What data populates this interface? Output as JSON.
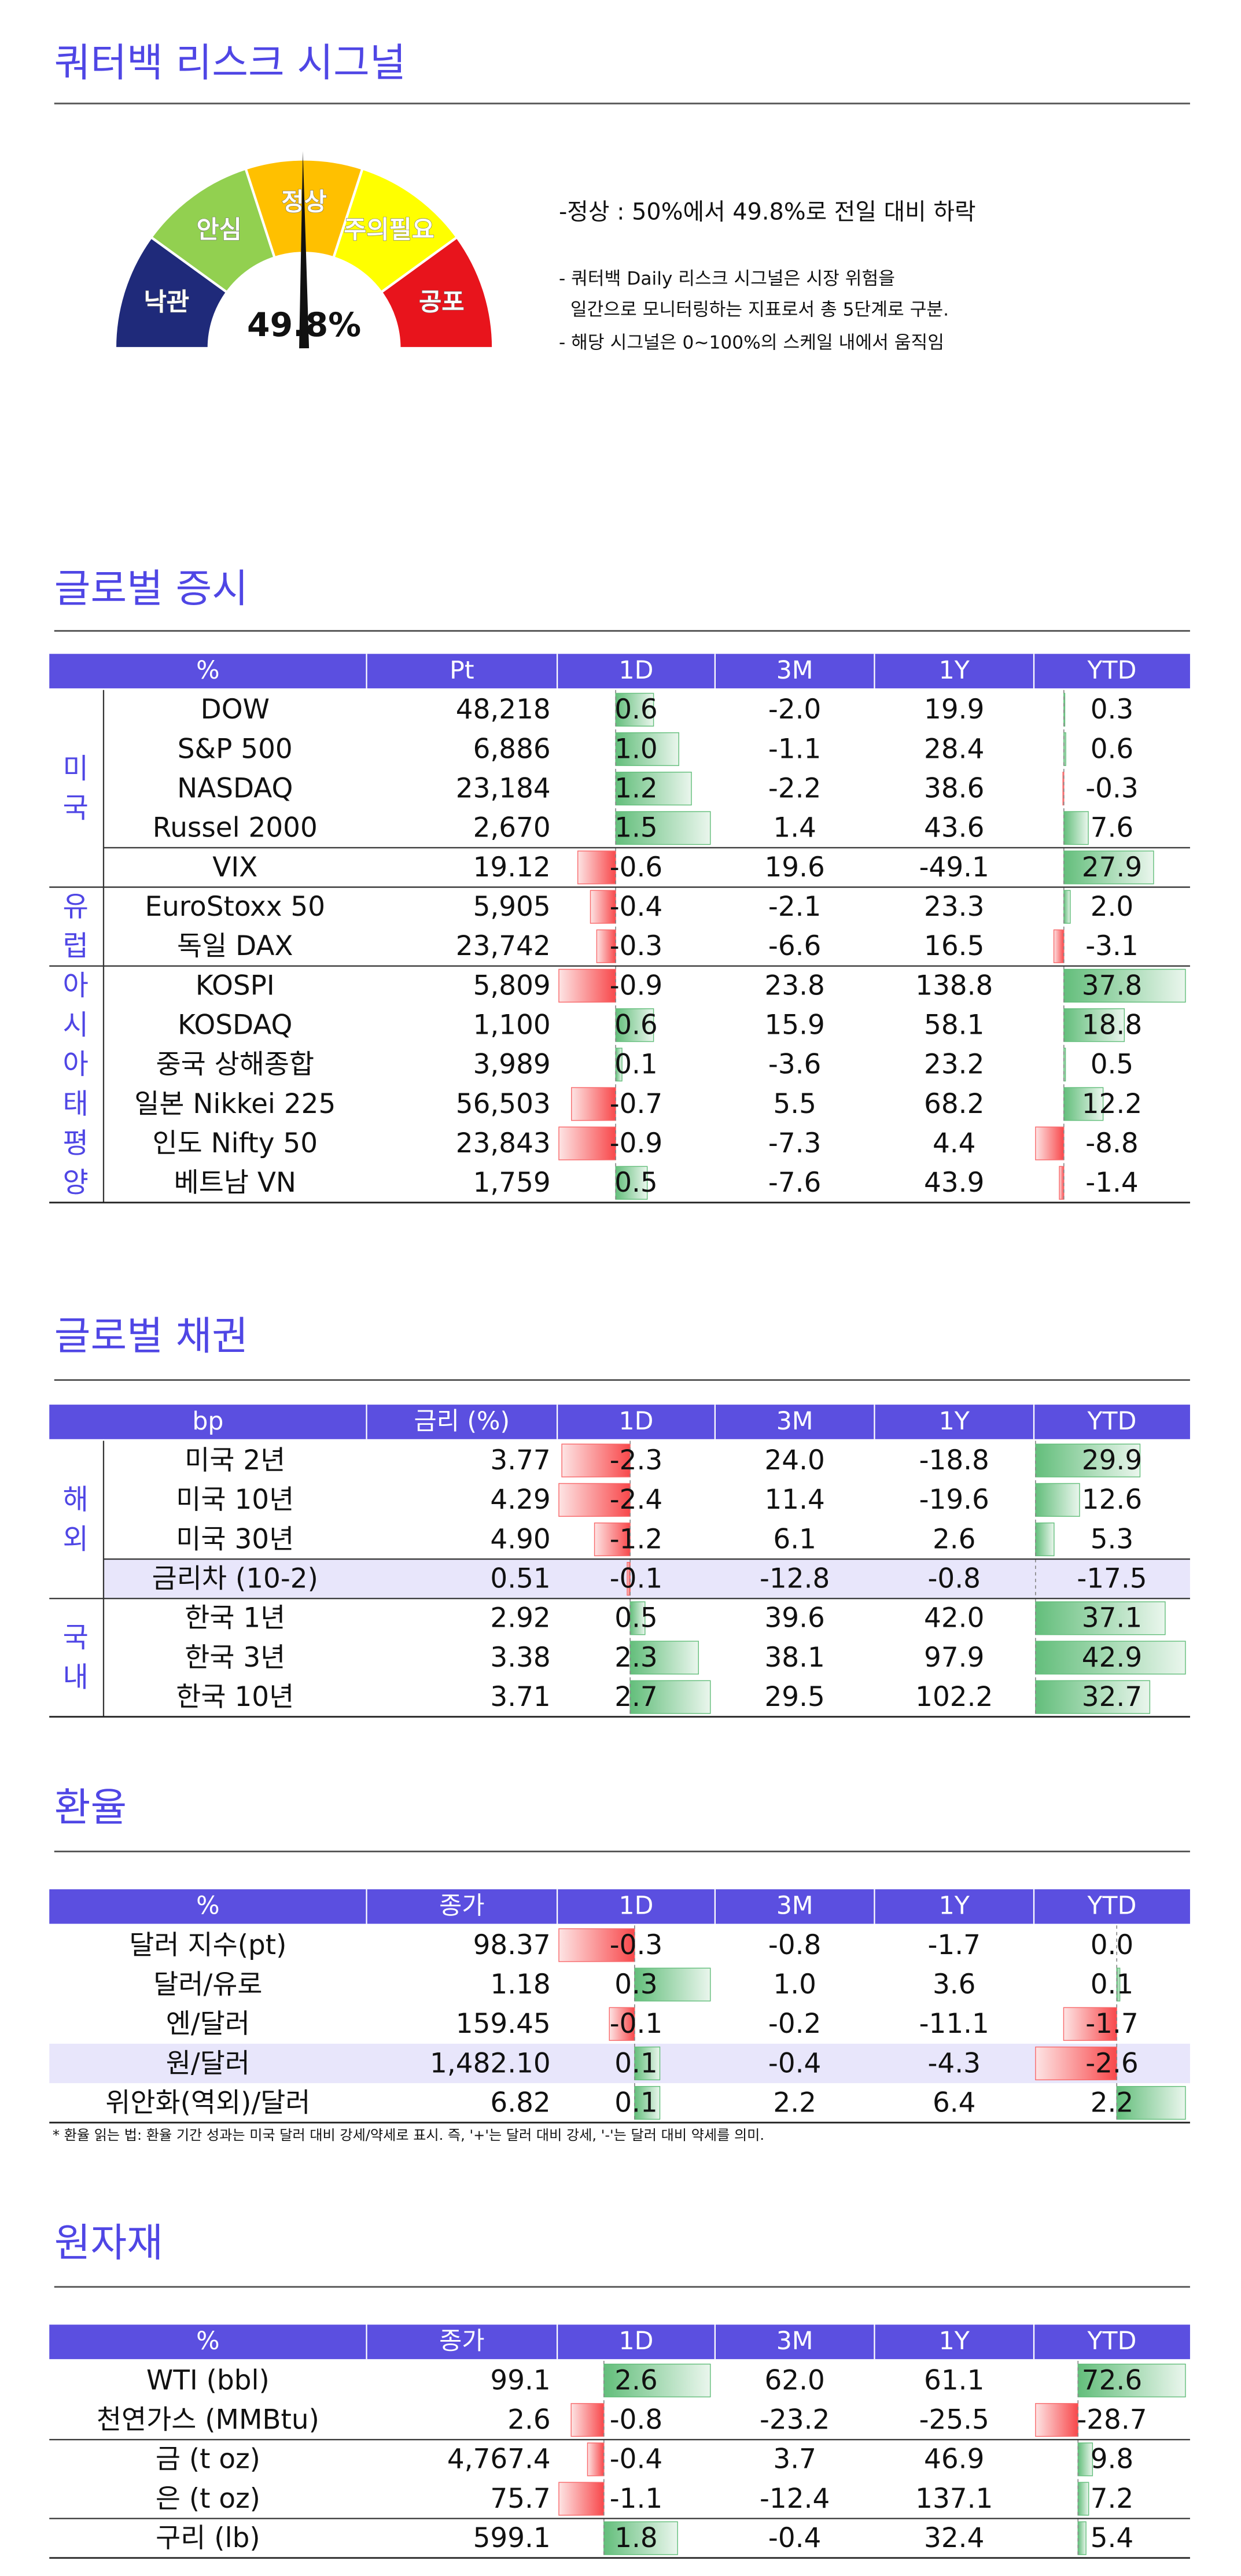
{
  "header": {
    "title": "쿼터백 리스크 시그널"
  },
  "gauge": {
    "levels": [
      "낙관",
      "안심",
      "정상",
      "주의필요",
      "공포"
    ],
    "colors": [
      "#1f2a7a",
      "#92d050",
      "#ffc000",
      "#ffff00",
      "#e8141c"
    ],
    "value": {
      "value": 49.8,
      "label": "49.8%"
    }
  },
  "notes": {
    "headline": "-정상 : 50%에서 49.8%로 전일 대비 하락",
    "lines": [
      "- 쿼터백 Daily 리스크 시그널은 시장 위험을",
      "  일간으로 모니터링하는 지표로서 총 5단계로 구분.",
      "- 해당 시그널은 0~100%의 스케일 내에서 움직임"
    ]
  },
  "sections": [
    {
      "title": "글로벌 증시",
      "columns": [
        "%",
        "Pt",
        "1D",
        "3M",
        "1Y",
        "YTD"
      ],
      "groups": [
        {
          "label": "미국",
          "rows": [
            [
              "DOW",
              "48,218",
              "0.6",
              "-2.0",
              "19.9",
              "0.3"
            ],
            [
              "S&P 500",
              "6,886",
              "1.0",
              "-1.1",
              "28.4",
              "0.6"
            ],
            [
              "NASDAQ",
              "23,184",
              "1.2",
              "-2.2",
              "38.6",
              "-0.3"
            ],
            [
              "Russel 2000",
              "2,670",
              "1.5",
              "1.4",
              "43.6",
              "7.6"
            ],
            [
              "VIX",
              "19.12",
              "-0.6",
              "19.6",
              "-49.1",
              "27.9"
            ]
          ]
        },
        {
          "label": "유럽",
          "rows": [
            [
              "EuroStoxx 50",
              "5,905",
              "-0.4",
              "-2.1",
              "23.3",
              "2.0"
            ],
            [
              "독일 DAX",
              "23,742",
              "-0.3",
              "-6.6",
              "16.5",
              "-3.1"
            ]
          ]
        },
        {
          "label": "아시아태평양",
          "rows": [
            [
              "KOSPI",
              "5,809",
              "-0.9",
              "23.8",
              "138.8",
              "37.8"
            ],
            [
              "KOSDAQ",
              "1,100",
              "0.6",
              "15.9",
              "58.1",
              "18.8"
            ],
            [
              "중국 상해종합",
              "3,989",
              "0.1",
              "-3.6",
              "23.2",
              "0.5"
            ],
            [
              "일본 Nikkei 225",
              "56,503",
              "-0.7",
              "5.5",
              "68.2",
              "12.2"
            ],
            [
              "인도 Nifty 50",
              "23,843",
              "-0.9",
              "-7.3",
              "4.4",
              "-8.8"
            ],
            [
              "베트남 VN",
              "1,759",
              "0.5",
              "-7.6",
              "43.9",
              "-1.4"
            ]
          ]
        }
      ]
    },
    {
      "title": "글로벌 채권",
      "columns": [
        "bp",
        "금리 (%)",
        "1D",
        "3M",
        "1Y",
        "YTD"
      ],
      "groups": [
        {
          "label": "해외",
          "rows": [
            [
              "미국 2년",
              "3.77",
              "-2.3",
              "24.0",
              "-18.8",
              "29.9"
            ],
            [
              "미국 10년",
              "4.29",
              "-2.4",
              "11.4",
              "-19.6",
              "12.6"
            ],
            [
              "미국 30년",
              "4.90",
              "-1.2",
              "6.1",
              "2.6",
              "5.3"
            ],
            [
              "금리차 (10-2)",
              "0.51",
              "-0.1",
              "-12.8",
              "-0.8",
              "-17.5"
            ]
          ]
        },
        {
          "label": "국내",
          "rows": [
            [
              "한국 1년",
              "2.92",
              "0.5",
              "39.6",
              "42.0",
              "37.1"
            ],
            [
              "한국 3년",
              "3.38",
              "2.3",
              "38.1",
              "97.9",
              "42.9"
            ],
            [
              "한국 10년",
              "3.71",
              "2.7",
              "29.5",
              "102.2",
              "32.7"
            ]
          ]
        }
      ]
    },
    {
      "title": "환율",
      "columns": [
        "%",
        "종가",
        "1D",
        "3M",
        "1Y",
        "YTD"
      ],
      "rows": [
        [
          "달러 지수(pt)",
          "98.37",
          "-0.3",
          "-0.8",
          "-1.7",
          "0.0"
        ],
        [
          "달러/유로",
          "1.18",
          "0.3",
          "1.0",
          "3.6",
          "0.1"
        ],
        [
          "엔/달러",
          "159.45",
          "-0.1",
          "-0.2",
          "-11.1",
          "-1.7"
        ],
        [
          "원/달러",
          "1,482.10",
          "0.1",
          "-0.4",
          "-4.3",
          "-2.6"
        ],
        [
          "위안화(역외)/달러",
          "6.82",
          "0.1",
          "2.2",
          "6.4",
          "2.2"
        ]
      ],
      "note": "* 환율 읽는 법: 환율 기간 성과는 미국 달러 대비 강세/약세로 표시. 즉, '+'는 달러 대비 강세, '-'는 달러 대비 약세를 의미."
    },
    {
      "title": "원자재",
      "columns": [
        "%",
        "종가",
        "1D",
        "3M",
        "1Y",
        "YTD"
      ],
      "rows": [
        [
          "WTI (bbl)",
          "99.1",
          "2.6",
          "62.0",
          "61.1",
          "72.6"
        ],
        [
          "천연가스 (MMBtu)",
          "2.6",
          "-0.8",
          "-23.2",
          "-25.5",
          "-28.7"
        ],
        [
          "금 (t oz)",
          "4,767.4",
          "-0.4",
          "3.7",
          "46.9",
          "9.8"
        ],
        [
          "은 (t oz)",
          "75.7",
          "-1.1",
          "-12.4",
          "137.1",
          "7.2"
        ],
        [
          "구리 (lb)",
          "599.1",
          "1.8",
          "-0.4",
          "32.4",
          "5.4"
        ]
      ]
    }
  ]
}
